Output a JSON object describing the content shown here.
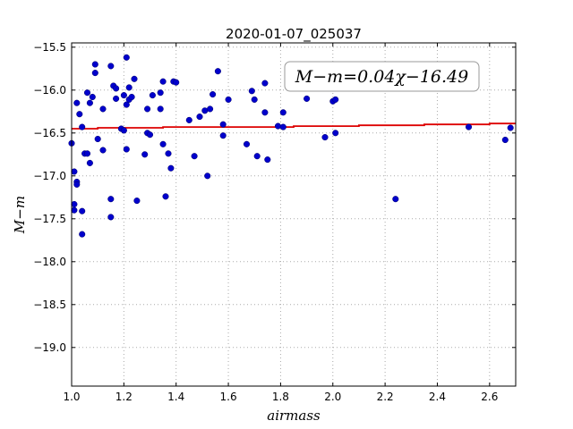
{
  "chart_data": {
    "type": "scatter",
    "title": "2020-01-07_025037",
    "xlabel": "airmass",
    "ylabel": "M−m",
    "xlim": [
      1.0,
      2.7
    ],
    "ylim": [
      -15.45,
      -19.45
    ],
    "y_inverted": true,
    "grid": true,
    "x_ticks": [
      1.0,
      1.2,
      1.4,
      1.6,
      1.8,
      2.0,
      2.2,
      2.4,
      2.6
    ],
    "x_tick_labels": [
      "1.0",
      "1.2",
      "1.4",
      "1.6",
      "1.8",
      "2.0",
      "2.2",
      "2.4",
      "2.6"
    ],
    "y_ticks": [
      -15.5,
      -16.0,
      -16.5,
      -17.0,
      -17.5,
      -18.0,
      -18.5,
      -19.0
    ],
    "y_tick_labels": [
      "−15.5",
      "−16.0",
      "−16.5",
      "−17.0",
      "−17.5",
      "−18.0",
      "−18.5",
      "−19.0"
    ],
    "annotation": "M−m=0.04χ−16.49",
    "colors": {
      "points": "#0000cc",
      "fit_line": "#dd0000",
      "grid": "#aaaaaa"
    },
    "fit": {
      "x": [
        1.0,
        1.1,
        1.1,
        1.35,
        1.35,
        1.85,
        1.85,
        2.1,
        2.1,
        2.35,
        2.35,
        2.6,
        2.6,
        2.7
      ],
      "y": [
        -16.45,
        -16.45,
        -16.44,
        -16.44,
        -16.43,
        -16.43,
        -16.42,
        -16.42,
        -16.41,
        -16.41,
        -16.4,
        -16.4,
        -16.39,
        -16.39
      ]
    },
    "points": [
      [
        1.0,
        -16.62
      ],
      [
        1.01,
        -16.95
      ],
      [
        1.01,
        -17.33
      ],
      [
        1.01,
        -17.4
      ],
      [
        1.02,
        -16.15
      ],
      [
        1.02,
        -17.07
      ],
      [
        1.02,
        -17.1
      ],
      [
        1.03,
        -16.28
      ],
      [
        1.04,
        -16.43
      ],
      [
        1.04,
        -17.41
      ],
      [
        1.04,
        -17.68
      ],
      [
        1.05,
        -16.74
      ],
      [
        1.06,
        -16.74
      ],
      [
        1.06,
        -16.03
      ],
      [
        1.07,
        -16.15
      ],
      [
        1.07,
        -16.85
      ],
      [
        1.08,
        -16.08
      ],
      [
        1.09,
        -15.7
      ],
      [
        1.09,
        -15.8
      ],
      [
        1.1,
        -16.57
      ],
      [
        1.12,
        -16.7
      ],
      [
        1.12,
        -16.22
      ],
      [
        1.15,
        -15.72
      ],
      [
        1.15,
        -17.27
      ],
      [
        1.15,
        -17.48
      ],
      [
        1.16,
        -15.95
      ],
      [
        1.17,
        -15.98
      ],
      [
        1.17,
        -16.1
      ],
      [
        1.19,
        -16.45
      ],
      [
        1.2,
        -16.06
      ],
      [
        1.2,
        -16.47
      ],
      [
        1.21,
        -16.69
      ],
      [
        1.21,
        -16.17
      ],
      [
        1.21,
        -15.62
      ],
      [
        1.22,
        -15.97
      ],
      [
        1.22,
        -16.11
      ],
      [
        1.23,
        -16.08
      ],
      [
        1.24,
        -15.87
      ],
      [
        1.25,
        -17.29
      ],
      [
        1.28,
        -16.75
      ],
      [
        1.29,
        -16.5
      ],
      [
        1.29,
        -16.22
      ],
      [
        1.3,
        -16.52
      ],
      [
        1.31,
        -16.06
      ],
      [
        1.34,
        -16.03
      ],
      [
        1.34,
        -16.22
      ],
      [
        1.35,
        -16.63
      ],
      [
        1.35,
        -15.9
      ],
      [
        1.36,
        -17.24
      ],
      [
        1.37,
        -16.74
      ],
      [
        1.38,
        -16.91
      ],
      [
        1.39,
        -15.9
      ],
      [
        1.4,
        -15.91
      ],
      [
        1.45,
        -16.35
      ],
      [
        1.47,
        -16.77
      ],
      [
        1.49,
        -16.31
      ],
      [
        1.51,
        -16.24
      ],
      [
        1.52,
        -17.0
      ],
      [
        1.53,
        -16.22
      ],
      [
        1.54,
        -16.05
      ],
      [
        1.56,
        -15.78
      ],
      [
        1.58,
        -16.4
      ],
      [
        1.58,
        -16.53
      ],
      [
        1.6,
        -16.11
      ],
      [
        1.67,
        -16.63
      ],
      [
        1.69,
        -16.01
      ],
      [
        1.7,
        -16.11
      ],
      [
        1.71,
        -16.77
      ],
      [
        1.74,
        -16.26
      ],
      [
        1.74,
        -15.92
      ],
      [
        1.75,
        -16.81
      ],
      [
        1.79,
        -16.42
      ],
      [
        1.81,
        -16.43
      ],
      [
        1.81,
        -16.26
      ],
      [
        1.9,
        -16.1
      ],
      [
        1.97,
        -16.55
      ],
      [
        2.0,
        -16.13
      ],
      [
        2.01,
        -16.11
      ],
      [
        2.01,
        -16.5
      ],
      [
        2.24,
        -17.27
      ],
      [
        2.52,
        -16.43
      ],
      [
        2.66,
        -16.58
      ],
      [
        2.68,
        -16.44
      ]
    ]
  }
}
